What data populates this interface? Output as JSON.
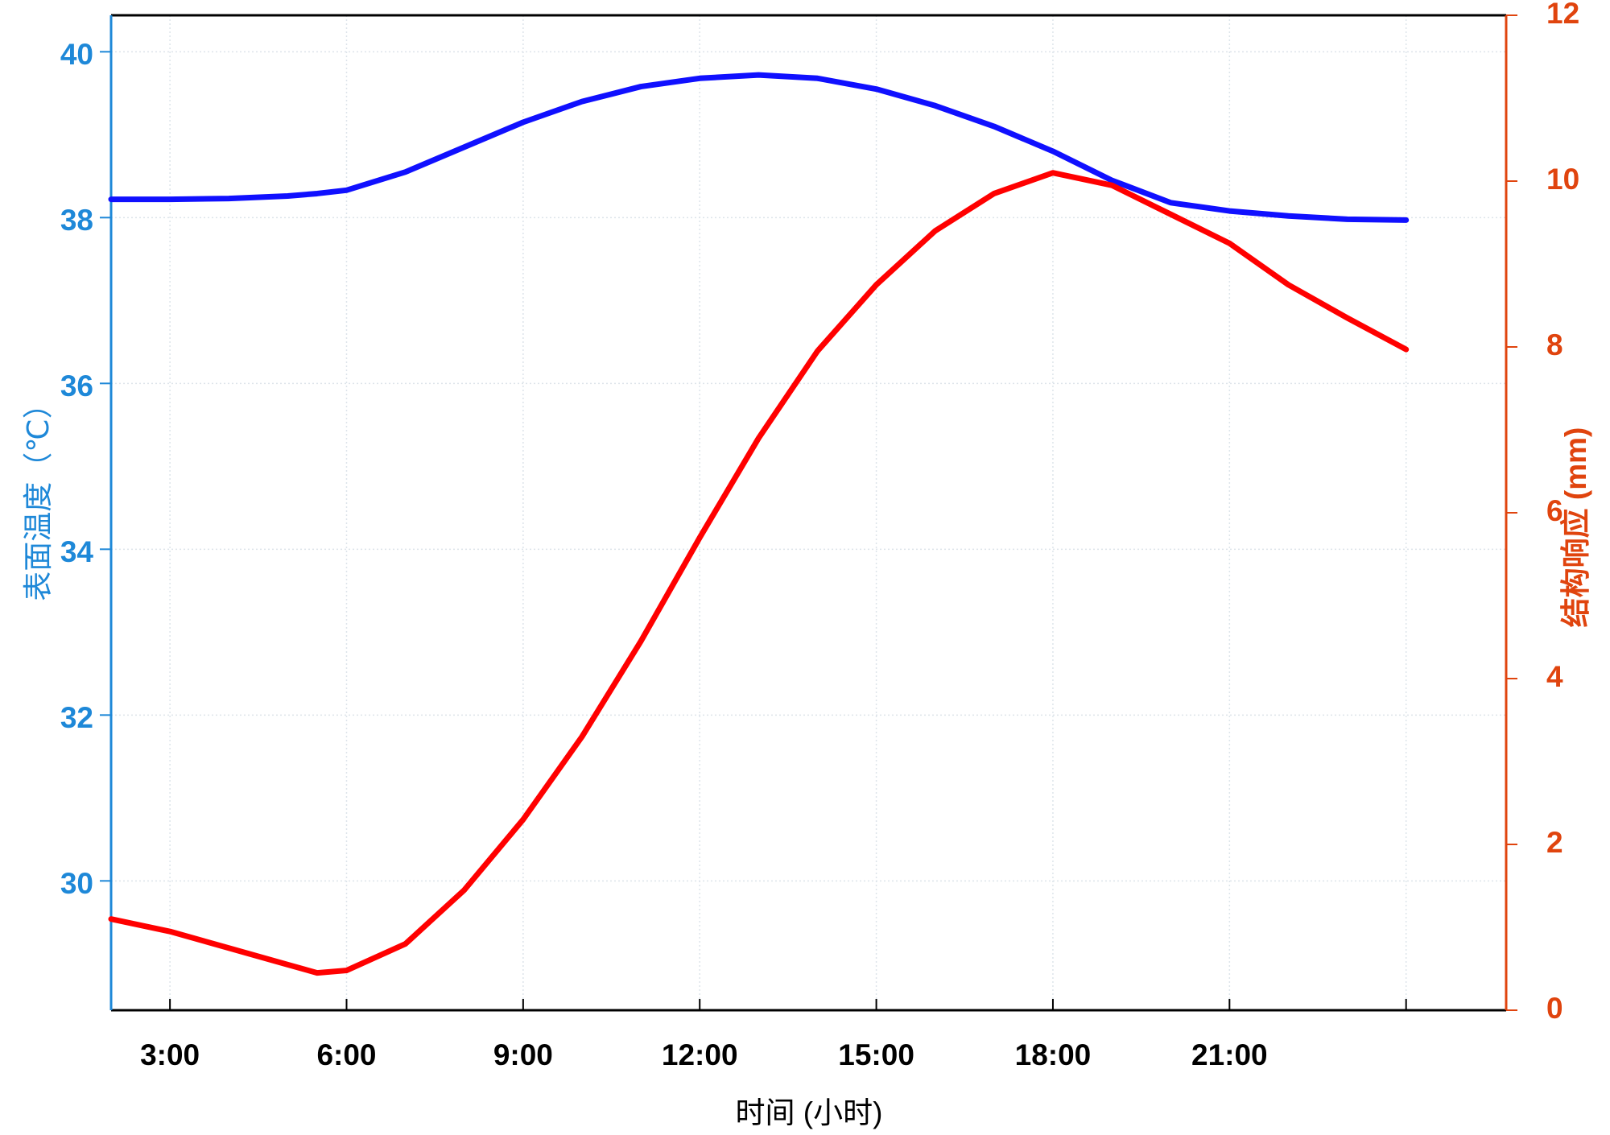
{
  "chart_data": {
    "type": "line",
    "x_label": "时间 (小时)",
    "y_label": "表面温度（℃）",
    "y2_label": "结构响应 (mm)",
    "x": [
      2,
      3,
      4,
      5,
      5.5,
      6,
      7,
      8,
      9,
      10,
      11,
      12,
      13,
      14,
      15,
      16,
      17,
      18,
      19,
      20,
      21,
      22,
      23,
      24
    ],
    "series": [
      {
        "name": "表面温度",
        "color": "#1010ff",
        "axis": "y",
        "values": [
          38.22,
          38.22,
          38.23,
          38.26,
          38.29,
          38.33,
          38.55,
          38.85,
          39.15,
          39.4,
          39.58,
          39.68,
          39.72,
          39.68,
          39.55,
          39.35,
          39.1,
          38.8,
          38.45,
          38.18,
          38.08,
          38.02,
          37.98,
          37.97
        ]
      },
      {
        "name": "结构响应",
        "color": "#ff0000",
        "axis": "y2",
        "values": [
          1.1,
          0.95,
          0.75,
          0.55,
          0.45,
          0.48,
          0.8,
          1.45,
          2.3,
          3.3,
          4.45,
          5.7,
          6.9,
          7.95,
          8.75,
          9.4,
          9.85,
          10.1,
          9.95,
          9.6,
          9.25,
          8.75,
          8.35,
          7.97
        ]
      }
    ],
    "xlim": [
      2,
      25.7
    ],
    "xticks": [
      {
        "value": 3,
        "label": "3:00"
      },
      {
        "value": 6,
        "label": "6:00"
      },
      {
        "value": 9,
        "label": "9:00"
      },
      {
        "value": 12,
        "label": "12:00"
      },
      {
        "value": 15,
        "label": "15:00"
      },
      {
        "value": 18,
        "label": "18:00"
      },
      {
        "value": 21,
        "label": "21:00"
      },
      {
        "value": 24,
        "label": null
      }
    ],
    "ylim": [
      28.44,
      40.44
    ],
    "yticks": [
      30,
      32,
      34,
      36,
      38,
      40
    ],
    "y2lim": [
      0,
      12
    ],
    "y2ticks": [
      0,
      2,
      4,
      6,
      8,
      10,
      12
    ],
    "y_color": "#1e88d8",
    "y2_color": "#e0440e",
    "grid": true
  }
}
